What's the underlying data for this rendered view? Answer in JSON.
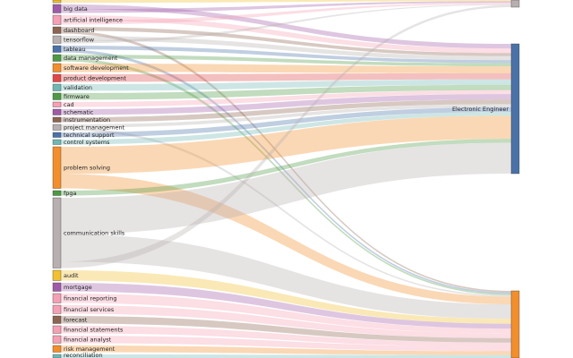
{
  "diagram": {
    "type": "sankey",
    "left_nodes": [
      {
        "name": "",
        "color": "#f2c12e"
      },
      {
        "name": "big data",
        "color": "#a05ba8"
      },
      {
        "name": "artificial intelligence",
        "color": "#f5a0b4"
      },
      {
        "name": "dashboard",
        "color": "#8c6450"
      },
      {
        "name": "tensorflow",
        "color": "#b8b0b0"
      },
      {
        "name": "tableau",
        "color": "#4a72a8"
      },
      {
        "name": "data management",
        "color": "#4e9a44"
      },
      {
        "name": "software development",
        "color": "#f28e2b"
      },
      {
        "name": "product development",
        "color": "#e04848"
      },
      {
        "name": "validation",
        "color": "#6fb8b4"
      },
      {
        "name": "firmware",
        "color": "#4e9a44"
      },
      {
        "name": "cad",
        "color": "#f5a0b4"
      },
      {
        "name": "schematic",
        "color": "#a05ba8"
      },
      {
        "name": "instrumentation",
        "color": "#8c6450"
      },
      {
        "name": "project management",
        "color": "#b8b0b0"
      },
      {
        "name": "technical support",
        "color": "#4a72a8"
      },
      {
        "name": "control systems",
        "color": "#6fb8b4"
      },
      {
        "name": "problem solving",
        "color": "#f28e2b"
      },
      {
        "name": "fpga",
        "color": "#4e9a44"
      },
      {
        "name": "communication skills",
        "color": "#b8b0b0"
      },
      {
        "name": "audit",
        "color": "#f2c12e"
      },
      {
        "name": "mortgage",
        "color": "#a05ba8"
      },
      {
        "name": "financial reporting",
        "color": "#f5a0b4"
      },
      {
        "name": "financial services",
        "color": "#f5a0b4"
      },
      {
        "name": "forecast",
        "color": "#8c6450"
      },
      {
        "name": "financial statements",
        "color": "#f5a0b4"
      },
      {
        "name": "financial analyst",
        "color": "#f5a0b4"
      },
      {
        "name": "risk management",
        "color": "#f28e2b"
      },
      {
        "name": "reconciliation",
        "color": "#6fb8b4"
      }
    ],
    "right_nodes": [
      {
        "name": "",
        "color": "#b8b0b0"
      },
      {
        "name": "Electronic Engineer",
        "color": "#4a72a8"
      },
      {
        "name": "",
        "color": "#f28e2b"
      }
    ],
    "links": [
      {
        "source": 0,
        "target": 0,
        "value": 4
      },
      {
        "source": 1,
        "target": 1,
        "value": 6
      },
      {
        "source": 1,
        "target": 0,
        "value": 5
      },
      {
        "source": 2,
        "target": 1,
        "value": 6
      },
      {
        "source": 2,
        "target": 0,
        "value": 5
      },
      {
        "source": 3,
        "target": 1,
        "value": 4
      },
      {
        "source": 3,
        "target": 2,
        "value": 3
      },
      {
        "source": 4,
        "target": 1,
        "value": 5
      },
      {
        "source": 4,
        "target": 0,
        "value": 3
      },
      {
        "source": 5,
        "target": 1,
        "value": 4
      },
      {
        "source": 5,
        "target": 2,
        "value": 3
      },
      {
        "source": 6,
        "target": 1,
        "value": 4
      },
      {
        "source": 6,
        "target": 2,
        "value": 3
      },
      {
        "source": 7,
        "target": 1,
        "value": 9
      },
      {
        "source": 8,
        "target": 1,
        "value": 8
      },
      {
        "source": 9,
        "target": 1,
        "value": 7
      },
      {
        "source": 10,
        "target": 1,
        "value": 7
      },
      {
        "source": 11,
        "target": 1,
        "value": 5
      },
      {
        "source": 12,
        "target": 1,
        "value": 7
      },
      {
        "source": 13,
        "target": 1,
        "value": 6
      },
      {
        "source": 14,
        "target": 1,
        "value": 4
      },
      {
        "source": 14,
        "target": 2,
        "value": 3
      },
      {
        "source": 15,
        "target": 1,
        "value": 6
      },
      {
        "source": 16,
        "target": 1,
        "value": 5
      },
      {
        "source": 17,
        "target": 1,
        "value": 30
      },
      {
        "source": 17,
        "target": 2,
        "value": 16
      },
      {
        "source": 18,
        "target": 1,
        "value": 5
      },
      {
        "source": 19,
        "target": 1,
        "value": 40
      },
      {
        "source": 19,
        "target": 2,
        "value": 30
      },
      {
        "source": 19,
        "target": 0,
        "value": 7
      },
      {
        "source": 20,
        "target": 2,
        "value": 10
      },
      {
        "source": 21,
        "target": 2,
        "value": 10
      },
      {
        "source": 22,
        "target": 2,
        "value": 10
      },
      {
        "source": 23,
        "target": 2,
        "value": 10
      },
      {
        "source": 24,
        "target": 2,
        "value": 9
      },
      {
        "source": 25,
        "target": 2,
        "value": 9
      },
      {
        "source": 26,
        "target": 2,
        "value": 9
      },
      {
        "source": 27,
        "target": 2,
        "value": 8
      },
      {
        "source": 28,
        "target": 2,
        "value": 6
      }
    ]
  }
}
